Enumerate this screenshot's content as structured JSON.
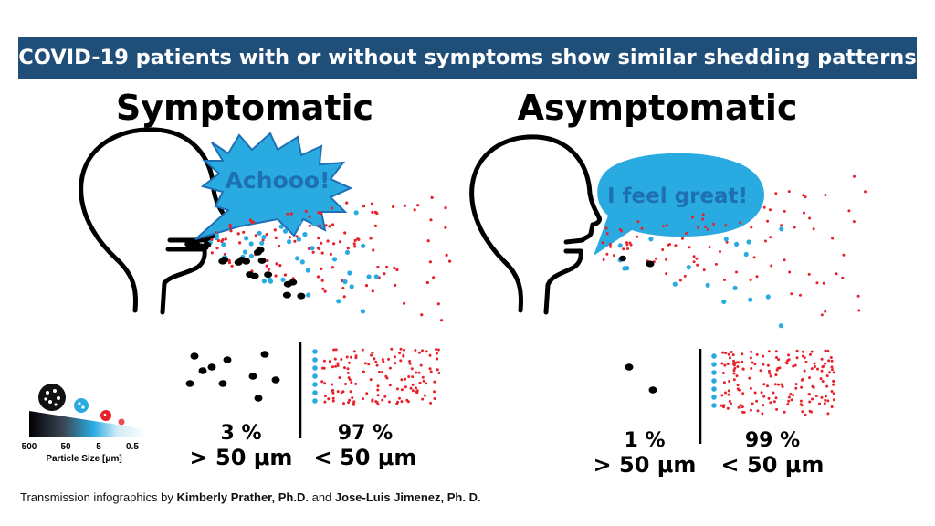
{
  "banner": {
    "title": "COVID-19 patients with or without symptoms show similar shedding patterns",
    "bg_color": "#1f4e79"
  },
  "symptomatic": {
    "heading": "Symptomatic",
    "bubble_text": "Achooo!",
    "large_percent": "3 %",
    "large_label": "> 50 μm",
    "small_percent": "97 %",
    "small_label": "< 50 μm"
  },
  "asymptomatic": {
    "heading": "Asymptomatic",
    "bubble_text": "I feel great!",
    "large_percent": "1 %",
    "large_label": "> 50 μm",
    "small_percent": "99 %",
    "small_label": "< 50 μm"
  },
  "legend": {
    "ticks": [
      "500",
      "50",
      "5",
      "0.5"
    ],
    "axis_label": "Particle Size [μm]"
  },
  "credit": {
    "prefix": "Transmission infographics by ",
    "author1": "Kimberly Prather, Ph.D.",
    "joiner": " and ",
    "author2": "Jose-Luis Jimenez, Ph. D."
  },
  "colors": {
    "large_particle": "#000000",
    "medium_particle": "#29abe2",
    "small_particle": "#e8202a",
    "bubble_fill": "#29abe2",
    "bubble_text": "#1f6fb5"
  }
}
